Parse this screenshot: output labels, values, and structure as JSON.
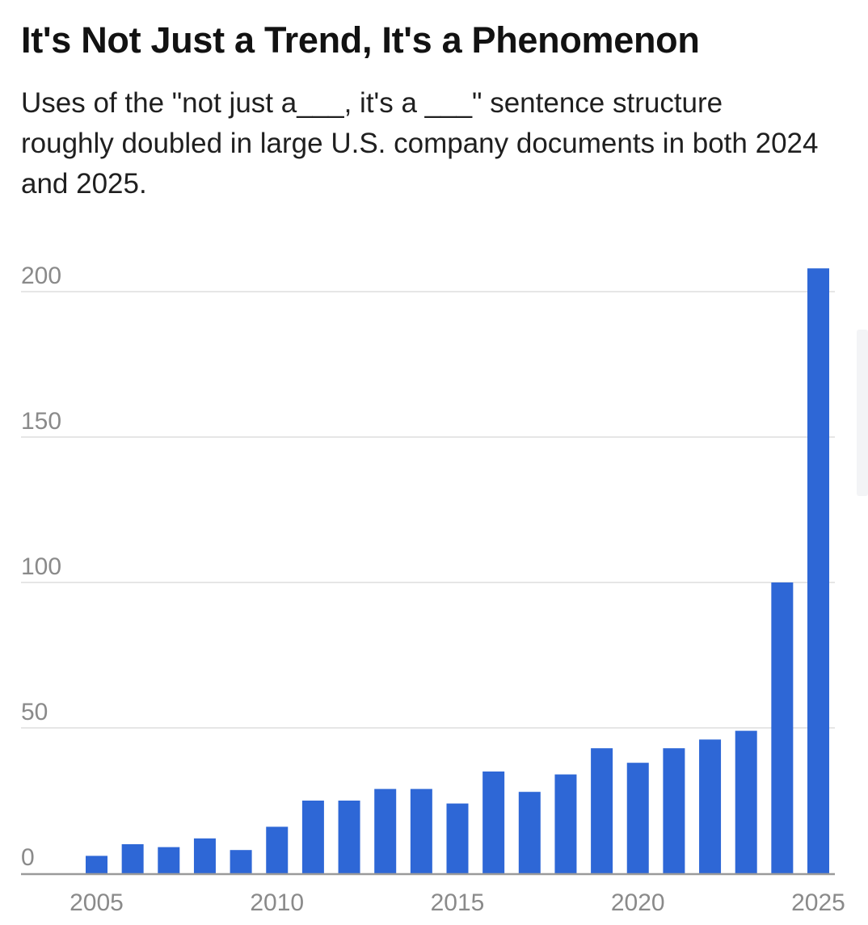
{
  "header": {
    "title": "It's Not Just a Trend, It's a Phenomenon",
    "subtitle": "Uses of the \"not just a___, it's a ___\" sentence structure roughly doubled in large U.S. company documents in both 2024 and 2025."
  },
  "chart_data": {
    "type": "bar",
    "title": "It's Not Just a Trend, It's a Phenomenon",
    "subtitle": "Uses of the \"not just a___, it's a ___\" sentence structure roughly doubled in large U.S. company documents in both 2024 and 2025.",
    "xlabel": "",
    "ylabel": "",
    "categories": [
      2005,
      2006,
      2007,
      2008,
      2009,
      2010,
      2011,
      2012,
      2013,
      2014,
      2015,
      2016,
      2017,
      2018,
      2019,
      2020,
      2021,
      2022,
      2023,
      2024,
      2025
    ],
    "values": [
      6,
      10,
      9,
      12,
      8,
      16,
      25,
      25,
      29,
      29,
      24,
      35,
      28,
      34,
      43,
      38,
      43,
      46,
      49,
      100,
      208
    ],
    "x_ticks": [
      "2005",
      "2010",
      "2015",
      "2020",
      "2025"
    ],
    "y_ticks": [
      "0",
      "50",
      "100",
      "150",
      "200"
    ],
    "ylim": [
      0,
      210
    ],
    "grid": true,
    "bar_color": "#2e67d6",
    "gridline_color": "#e6e6e6",
    "axis_color": "#9a9a9a"
  }
}
